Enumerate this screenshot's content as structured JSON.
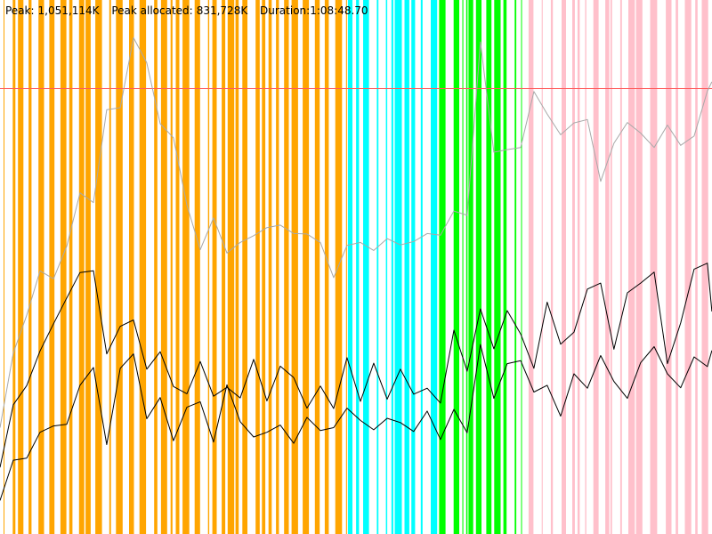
{
  "stats": {
    "peak_label": "Peak:",
    "peak_value": "1,051,114K",
    "allocated_label": "Peak allocated:",
    "allocated_value": "831,728K",
    "duration_label": "Duration:",
    "duration_value": "1:08:48.70"
  },
  "chart_data": {
    "type": "line",
    "x_range": [
      0,
      4128.7
    ],
    "x_unit": "seconds",
    "y_range": [
      0,
      1260000
    ],
    "y_unit": "K",
    "peak_line": 1051114,
    "series": [
      {
        "color": "#a8a8a8",
        "x": [
          0,
          77,
          155,
          232,
          310,
          387,
          464,
          542,
          619,
          697,
          774,
          851,
          929,
          1006,
          1084,
          1161,
          1238,
          1316,
          1393,
          1471,
          1548,
          1625,
          1703,
          1780,
          1858,
          1935,
          2012,
          2090,
          2167,
          2245,
          2322,
          2399,
          2477,
          2554,
          2632,
          2709,
          2786,
          2864,
          2941,
          3019,
          3096,
          3173,
          3251,
          3328,
          3406,
          3483,
          3560,
          3638,
          3715,
          3793,
          3870,
          3947,
          4025,
          4102,
          4128
        ],
        "values": [
          251000,
          427000,
          516000,
          621000,
          602000,
          679000,
          805000,
          782000,
          1001000,
          1006000,
          1171000,
          1112000,
          968000,
          935000,
          776000,
          671000,
          746000,
          663000,
          688000,
          704000,
          723000,
          729000,
          709000,
          708000,
          688000,
          605000,
          681000,
          688000,
          669000,
          697000,
          682000,
          690000,
          709000,
          705000,
          762000,
          752000,
          1161000,
          901000,
          907000,
          912000,
          1044000,
          991000,
          942000,
          970000,
          978000,
          832000,
          922000,
          971000,
          946000,
          912000,
          965000,
          917000,
          939000,
          1045000,
          1067000
        ]
      },
      {
        "color": "#000000",
        "x": [
          0,
          77,
          155,
          232,
          310,
          387,
          464,
          542,
          619,
          697,
          774,
          851,
          929,
          1006,
          1084,
          1161,
          1238,
          1316,
          1393,
          1471,
          1548,
          1625,
          1703,
          1780,
          1858,
          1935,
          2012,
          2090,
          2167,
          2245,
          2322,
          2399,
          2477,
          2554,
          2632,
          2709,
          2786,
          2864,
          2941,
          3019,
          3096,
          3173,
          3251,
          3328,
          3406,
          3483,
          3560,
          3638,
          3715,
          3793,
          3870,
          3947,
          4025,
          4102,
          4128
        ],
        "values": [
          157000,
          305000,
          350000,
          432000,
          496000,
          557000,
          617000,
          621000,
          425000,
          490000,
          505000,
          389000,
          430000,
          348000,
          331000,
          407000,
          325000,
          346000,
          321000,
          412000,
          314000,
          396000,
          369000,
          297000,
          349000,
          296000,
          416000,
          313000,
          403000,
          318000,
          389000,
          330000,
          344000,
          309000,
          481000,
          384000,
          531000,
          437000,
          527000,
          472000,
          391000,
          547000,
          448000,
          476000,
          578000,
          592000,
          436000,
          569000,
          592000,
          618000,
          402000,
          498000,
          625000,
          639000,
          525000
        ]
      },
      {
        "color": "#000000",
        "x": [
          0,
          77,
          155,
          232,
          310,
          387,
          464,
          542,
          619,
          697,
          774,
          851,
          929,
          1006,
          1084,
          1161,
          1238,
          1316,
          1393,
          1471,
          1548,
          1625,
          1703,
          1780,
          1858,
          1935,
          2012,
          2090,
          2167,
          2245,
          2322,
          2399,
          2477,
          2554,
          2632,
          2709,
          2786,
          2864,
          2941,
          3019,
          3096,
          3173,
          3251,
          3328,
          3406,
          3483,
          3560,
          3638,
          3715,
          3793,
          3870,
          3947,
          4025,
          4102,
          4128
        ],
        "values": [
          79000,
          174000,
          179000,
          240000,
          255000,
          259000,
          351000,
          393000,
          211000,
          391000,
          425000,
          272000,
          322000,
          220000,
          299000,
          312000,
          217000,
          352000,
          265000,
          229000,
          240000,
          257000,
          214000,
          275000,
          244000,
          251000,
          297000,
          268000,
          246000,
          273000,
          263000,
          242000,
          290000,
          223000,
          294000,
          239000,
          447000,
          320000,
          402000,
          409000,
          335000,
          351000,
          278000,
          378000,
          344000,
          421000,
          360000,
          320000,
          404000,
          442000,
          378000,
          345000,
          418000,
          395000,
          433000
        ]
      }
    ],
    "phases": [
      {
        "color": "#ffa500",
        "start": 0,
        "end": 2012
      },
      {
        "color": "#00ffff",
        "start": 2012,
        "end": 2541
      },
      {
        "color": "#00ff00",
        "start": 2541,
        "end": 3060
      },
      {
        "color": "#ffc0cb",
        "start": 3060,
        "end": 4128
      }
    ]
  }
}
